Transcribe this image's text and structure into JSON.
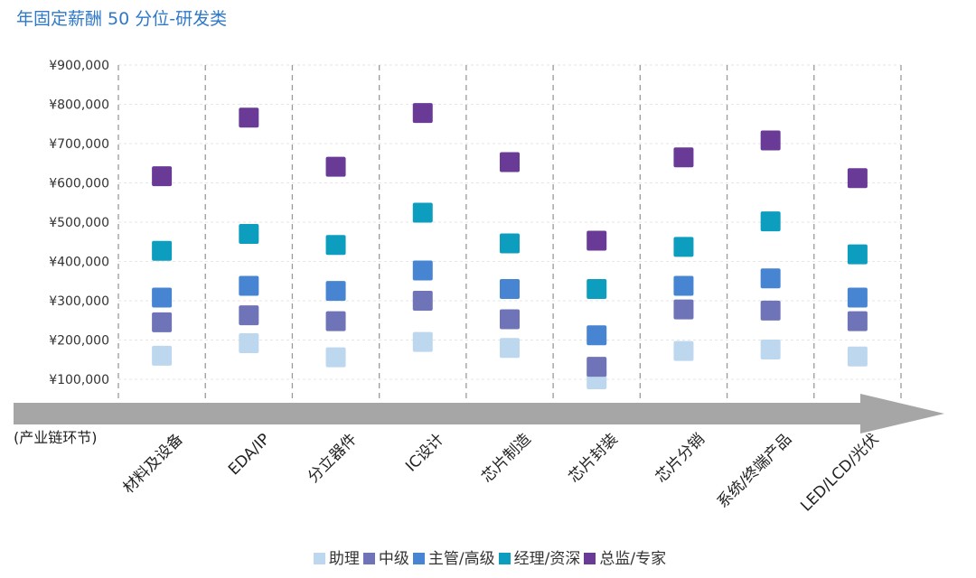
{
  "title": "年固定薪酬 50 分位-研发类",
  "chart_data": {
    "type": "scatter",
    "xlabel": "(产业链环节)",
    "ylabel": "",
    "ylim": [
      100000,
      900000
    ],
    "yticks": [
      "¥100,000",
      "¥200,000",
      "¥300,000",
      "¥400,000",
      "¥500,000",
      "¥600,000",
      "¥700,000",
      "¥800,000",
      "¥900,000"
    ],
    "ytick_values": [
      100000,
      200000,
      300000,
      400000,
      500000,
      600000,
      700000,
      800000,
      900000
    ],
    "grid": true,
    "legend_position": "bottom",
    "categories": [
      "材料及设备",
      "EDA/IP",
      "分立器件",
      "IC设计",
      "芯片制造",
      "芯片封装",
      "芯片分销",
      "系统/终端产品",
      "LED/LCD/光伏"
    ],
    "series": [
      {
        "name": "助理",
        "color": "#bdd7ee",
        "values": [
          160000,
          192000,
          156000,
          195000,
          180000,
          100000,
          172000,
          176000,
          158000
        ]
      },
      {
        "name": "中级",
        "color": "#6f74b8",
        "values": [
          245000,
          263000,
          248000,
          300000,
          253000,
          132000,
          278000,
          275000,
          248000
        ]
      },
      {
        "name": "主管/高级",
        "color": "#4784d1",
        "values": [
          308000,
          338000,
          325000,
          377000,
          330000,
          212000,
          338000,
          357000,
          308000
        ]
      },
      {
        "name": "经理/资深",
        "color": "#0d9ebf",
        "values": [
          427000,
          470000,
          442000,
          524000,
          446000,
          330000,
          437000,
          502000,
          418000
        ]
      },
      {
        "name": "总监/专家",
        "color": "#6a3a97",
        "values": [
          617000,
          766000,
          641000,
          778000,
          653000,
          453000,
          665000,
          708000,
          612000
        ]
      }
    ]
  }
}
